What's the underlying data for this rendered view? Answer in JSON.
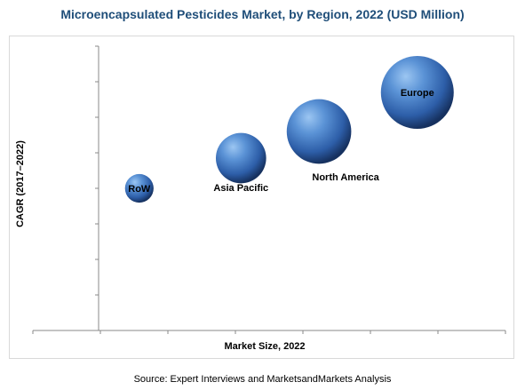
{
  "title": "Microencapsulated Pesticides Market, by Region, 2022 (USD Million)",
  "source": "Source: Expert Interviews and MarketsandMarkets Analysis",
  "colors": {
    "title": "#1f4e79",
    "bubble_light": "#7fb2ea",
    "bubble_mid": "#3a73c2",
    "bubble_dark": "#16315f",
    "axis": "#888888"
  },
  "chart_data": {
    "type": "scatter",
    "title": "Microencapsulated Pesticides Market, by Region, 2022 (USD Million)",
    "xlabel": "Market Size, 2022",
    "ylabel": "CAGR (2017–2022)",
    "x_tick_labels": [],
    "y_tick_labels": [],
    "xlim": [
      0,
      6
    ],
    "ylim": [
      0,
      8
    ],
    "grid": false,
    "legend": "none",
    "bubble_size_encodes": "Market Size, 2022",
    "points": [
      {
        "label": "RoW",
        "x": 0.6,
        "y": 4.0,
        "size": 1.0
      },
      {
        "label": "Asia Pacific",
        "x": 2.1,
        "y": 4.85,
        "size": 3.1
      },
      {
        "label": "North America",
        "x": 3.25,
        "y": 5.6,
        "size": 5.1
      },
      {
        "label": "Europe",
        "x": 4.7,
        "y": 6.7,
        "size": 6.5
      }
    ]
  }
}
